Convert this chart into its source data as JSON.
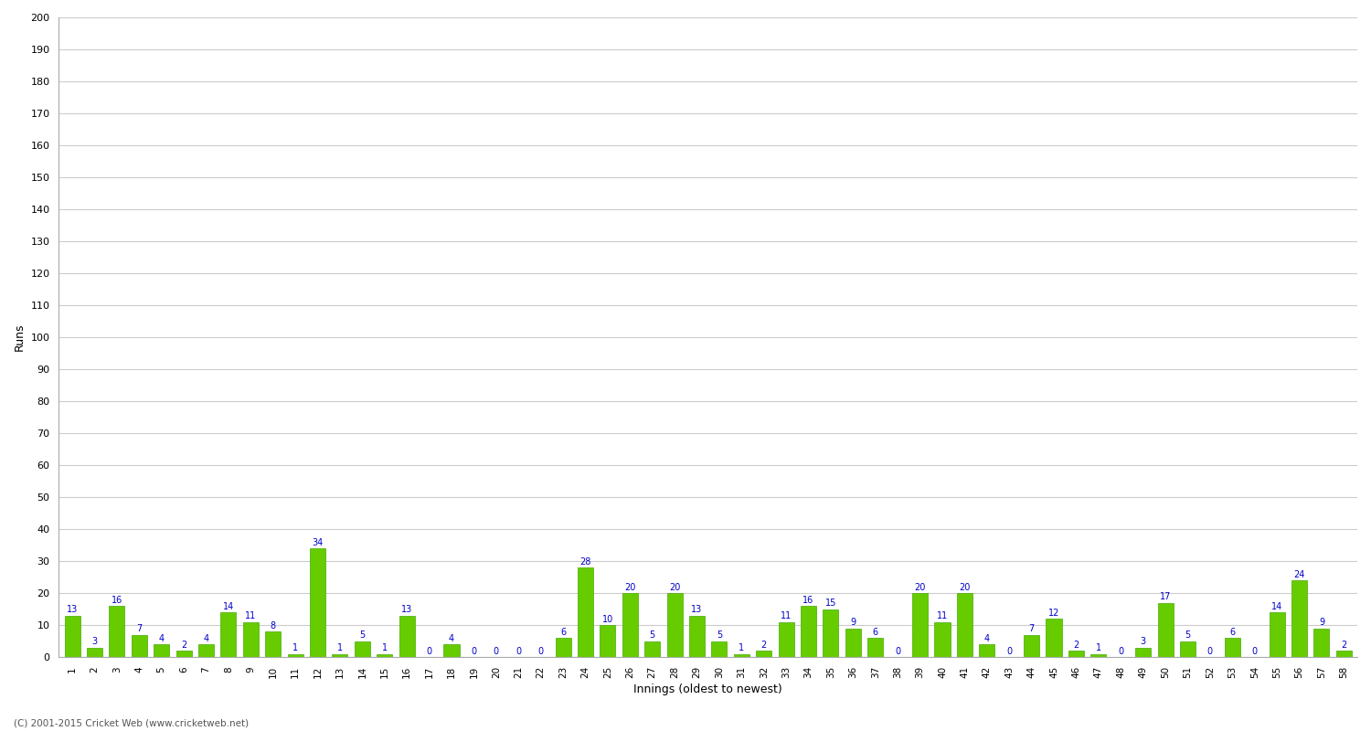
{
  "xlabel": "Innings (oldest to newest)",
  "ylabel": "Runs",
  "ylim": [
    0,
    200
  ],
  "bar_color": "#66CC00",
  "bar_edge_color": "#44AA00",
  "label_color": "#0000CC",
  "background_color": "#ffffff",
  "grid_color": "#cccccc",
  "innings": [
    1,
    2,
    3,
    4,
    5,
    6,
    7,
    8,
    9,
    10,
    11,
    12,
    13,
    14,
    15,
    16,
    17,
    18,
    19,
    20,
    21,
    22,
    23,
    24,
    25,
    26,
    27,
    28,
    29,
    30,
    31,
    32,
    33,
    34,
    35,
    36,
    37,
    38,
    39,
    40,
    41,
    42,
    43,
    44,
    45,
    46,
    47,
    48,
    49,
    50,
    51,
    52,
    53,
    54,
    55,
    56,
    57,
    58
  ],
  "runs": [
    13,
    3,
    16,
    7,
    4,
    2,
    4,
    14,
    11,
    8,
    1,
    34,
    1,
    5,
    1,
    13,
    0,
    4,
    0,
    0,
    0,
    0,
    6,
    28,
    10,
    20,
    5,
    20,
    13,
    5,
    1,
    2,
    11,
    16,
    15,
    9,
    6,
    0,
    20,
    11,
    20,
    4,
    0,
    7,
    12,
    2,
    1,
    0,
    3,
    17,
    5,
    0,
    6,
    0,
    14,
    24,
    9,
    2
  ]
}
